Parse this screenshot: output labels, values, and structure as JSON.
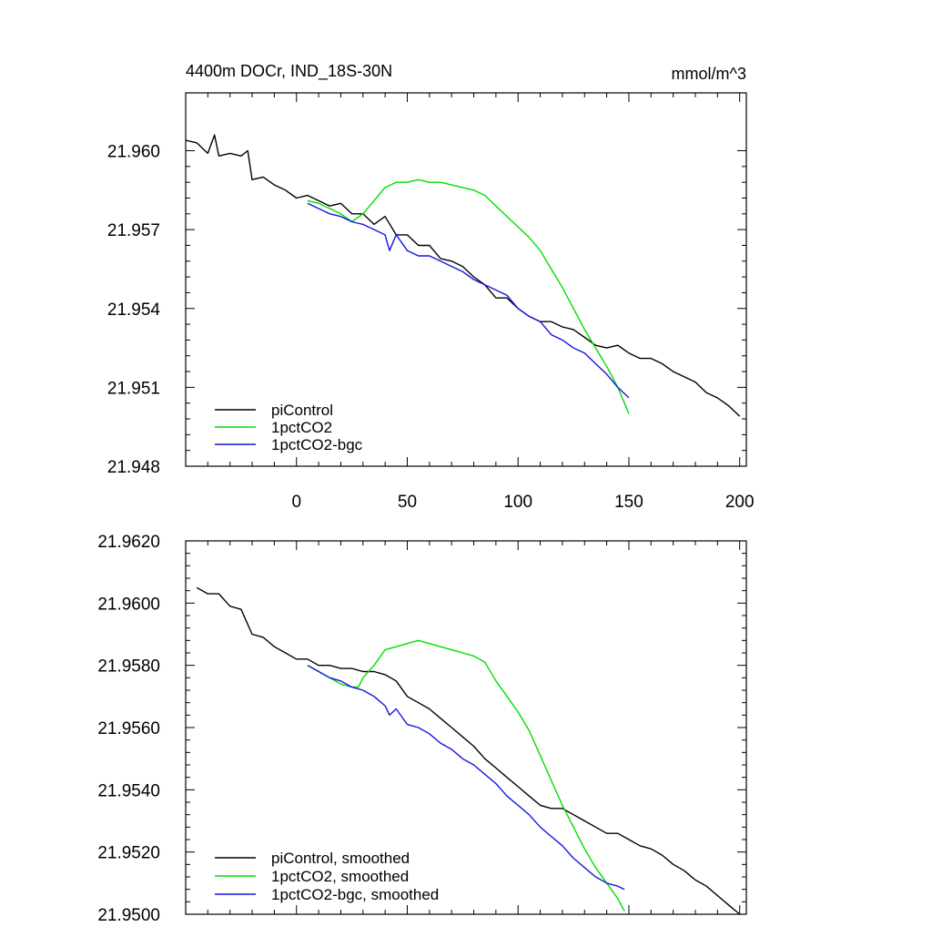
{
  "chart_data": [
    {
      "type": "line",
      "title": "4400m DOCr, IND_18S-30N",
      "units": "mmol/m^3",
      "xlim": [
        -50,
        203
      ],
      "ylim": [
        21.948,
        21.9622
      ],
      "xticks": [
        0,
        50,
        100,
        150,
        200
      ],
      "xtick_labels": [
        "0",
        "50",
        "100",
        "150",
        "200"
      ],
      "yticks": [
        21.948,
        21.951,
        21.954,
        21.957,
        21.96
      ],
      "ytick_labels": [
        "21.948",
        "21.951",
        "21.954",
        "21.957",
        "21.960"
      ],
      "legend_position": "bottom-left",
      "series": [
        {
          "name": "piControl",
          "color": "#000000",
          "x": [
            -50,
            -45,
            -40,
            -37,
            -35,
            -30,
            -25,
            -22,
            -20,
            -15,
            -10,
            -5,
            0,
            5,
            10,
            15,
            20,
            25,
            30,
            35,
            40,
            45,
            50,
            55,
            60,
            65,
            70,
            75,
            80,
            85,
            90,
            95,
            100,
            105,
            110,
            115,
            120,
            125,
            130,
            135,
            140,
            145,
            150,
            155,
            160,
            165,
            170,
            175,
            180,
            185,
            190,
            195,
            200
          ],
          "y": [
            21.9604,
            21.9603,
            21.9599,
            21.9606,
            21.9598,
            21.9599,
            21.9598,
            21.96,
            21.9589,
            21.959,
            21.9587,
            21.9585,
            21.9582,
            21.9583,
            21.9581,
            21.9579,
            21.958,
            21.9576,
            21.9576,
            21.9572,
            21.9575,
            21.9568,
            21.9568,
            21.9564,
            21.9564,
            21.9559,
            21.9558,
            21.9556,
            21.9552,
            21.9549,
            21.9544,
            21.9544,
            21.954,
            21.9537,
            21.9535,
            21.9535,
            21.9533,
            21.9532,
            21.9529,
            21.9526,
            21.9525,
            21.9526,
            21.9523,
            21.9521,
            21.9521,
            21.9519,
            21.9516,
            21.9514,
            21.9512,
            21.9508,
            21.9506,
            21.9503,
            21.9499
          ]
        },
        {
          "name": "1pctCO2",
          "color": "#00dd00",
          "x": [
            5,
            10,
            15,
            20,
            25,
            30,
            35,
            40,
            45,
            50,
            55,
            60,
            65,
            70,
            75,
            80,
            85,
            90,
            95,
            100,
            105,
            110,
            115,
            120,
            125,
            130,
            135,
            140,
            145,
            150
          ],
          "y": [
            21.9581,
            21.958,
            21.9578,
            21.9576,
            21.9573,
            21.9576,
            21.9581,
            21.9586,
            21.9588,
            21.9588,
            21.9589,
            21.9588,
            21.9588,
            21.9587,
            21.9586,
            21.9585,
            21.9583,
            21.9579,
            21.9575,
            21.9571,
            21.9567,
            21.9562,
            21.9555,
            21.9548,
            21.954,
            21.9532,
            21.9525,
            21.9518,
            21.951,
            21.95
          ]
        },
        {
          "name": "1pctCO2-bgc",
          "color": "#1515dd",
          "x": [
            5,
            10,
            15,
            20,
            25,
            30,
            35,
            40,
            42,
            45,
            50,
            55,
            60,
            65,
            70,
            75,
            80,
            85,
            90,
            95,
            100,
            105,
            110,
            115,
            120,
            125,
            130,
            135,
            140,
            145,
            150
          ],
          "y": [
            21.958,
            21.9578,
            21.9576,
            21.9575,
            21.9573,
            21.9572,
            21.957,
            21.9568,
            21.9562,
            21.9568,
            21.9562,
            21.956,
            21.956,
            21.9558,
            21.9556,
            21.9554,
            21.9551,
            21.9549,
            21.9547,
            21.9545,
            21.954,
            21.9537,
            21.9535,
            21.953,
            21.9528,
            21.9525,
            21.9523,
            21.9519,
            21.9515,
            21.951,
            21.9506
          ]
        }
      ]
    },
    {
      "type": "line",
      "title": "",
      "xlim": [
        -50,
        203
      ],
      "ylim": [
        21.95,
        21.962
      ],
      "xticks": [
        0,
        50,
        100,
        150,
        200
      ],
      "yticks": [
        21.95,
        21.952,
        21.954,
        21.956,
        21.958,
        21.96,
        21.962
      ],
      "ytick_labels": [
        "21.9500",
        "21.9520",
        "21.9540",
        "21.9560",
        "21.9580",
        "21.9600",
        "21.9620"
      ],
      "legend_position": "bottom-left",
      "series": [
        {
          "name": "piControl, smoothed",
          "color": "#000000",
          "x": [
            -45,
            -40,
            -35,
            -30,
            -25,
            -20,
            -15,
            -10,
            -5,
            0,
            5,
            10,
            15,
            20,
            25,
            30,
            35,
            40,
            45,
            50,
            55,
            60,
            65,
            70,
            75,
            80,
            85,
            90,
            95,
            100,
            105,
            110,
            115,
            120,
            125,
            130,
            135,
            140,
            145,
            150,
            155,
            160,
            165,
            170,
            175,
            180,
            185,
            190,
            195,
            200
          ],
          "y": [
            21.9605,
            21.9603,
            21.9603,
            21.9599,
            21.9598,
            21.959,
            21.9589,
            21.9586,
            21.9584,
            21.9582,
            21.9582,
            21.958,
            21.958,
            21.9579,
            21.9579,
            21.9578,
            21.9578,
            21.9577,
            21.9575,
            21.957,
            21.9568,
            21.9566,
            21.9563,
            21.956,
            21.9557,
            21.9554,
            21.955,
            21.9547,
            21.9544,
            21.9541,
            21.9538,
            21.9535,
            21.9534,
            21.9534,
            21.9532,
            21.953,
            21.9528,
            21.9526,
            21.9526,
            21.9524,
            21.9522,
            21.9521,
            21.9519,
            21.9516,
            21.9514,
            21.9511,
            21.9509,
            21.9506,
            21.9503,
            21.95
          ]
        },
        {
          "name": "1pctCO2, smoothed",
          "color": "#00dd00",
          "x": [
            5,
            10,
            15,
            20,
            25,
            28,
            30,
            35,
            40,
            45,
            50,
            55,
            60,
            65,
            70,
            75,
            80,
            85,
            90,
            95,
            100,
            105,
            110,
            115,
            120,
            125,
            130,
            135,
            140,
            145,
            148
          ],
          "y": [
            21.958,
            21.9578,
            21.9576,
            21.9574,
            21.9573,
            21.9573,
            21.9576,
            21.958,
            21.9585,
            21.9586,
            21.9587,
            21.9588,
            21.9587,
            21.9586,
            21.9585,
            21.9584,
            21.9583,
            21.9581,
            21.9575,
            21.957,
            21.9565,
            21.9559,
            21.9551,
            21.9543,
            21.9535,
            21.9528,
            21.9521,
            21.9515,
            21.951,
            21.9505,
            21.9501
          ]
        },
        {
          "name": "1pctCO2-bgc, smoothed",
          "color": "#1515dd",
          "x": [
            5,
            10,
            15,
            20,
            25,
            30,
            35,
            40,
            42,
            45,
            50,
            55,
            60,
            65,
            70,
            75,
            80,
            85,
            90,
            95,
            100,
            105,
            110,
            115,
            120,
            125,
            130,
            135,
            140,
            145,
            148
          ],
          "y": [
            21.958,
            21.9578,
            21.9576,
            21.9575,
            21.9573,
            21.9572,
            21.957,
            21.9567,
            21.9564,
            21.9566,
            21.9561,
            21.956,
            21.9558,
            21.9555,
            21.9553,
            21.955,
            21.9548,
            21.9545,
            21.9542,
            21.9538,
            21.9535,
            21.9532,
            21.9528,
            21.9525,
            21.9522,
            21.9518,
            21.9515,
            21.9512,
            21.951,
            21.9509,
            21.9508
          ]
        }
      ]
    }
  ]
}
